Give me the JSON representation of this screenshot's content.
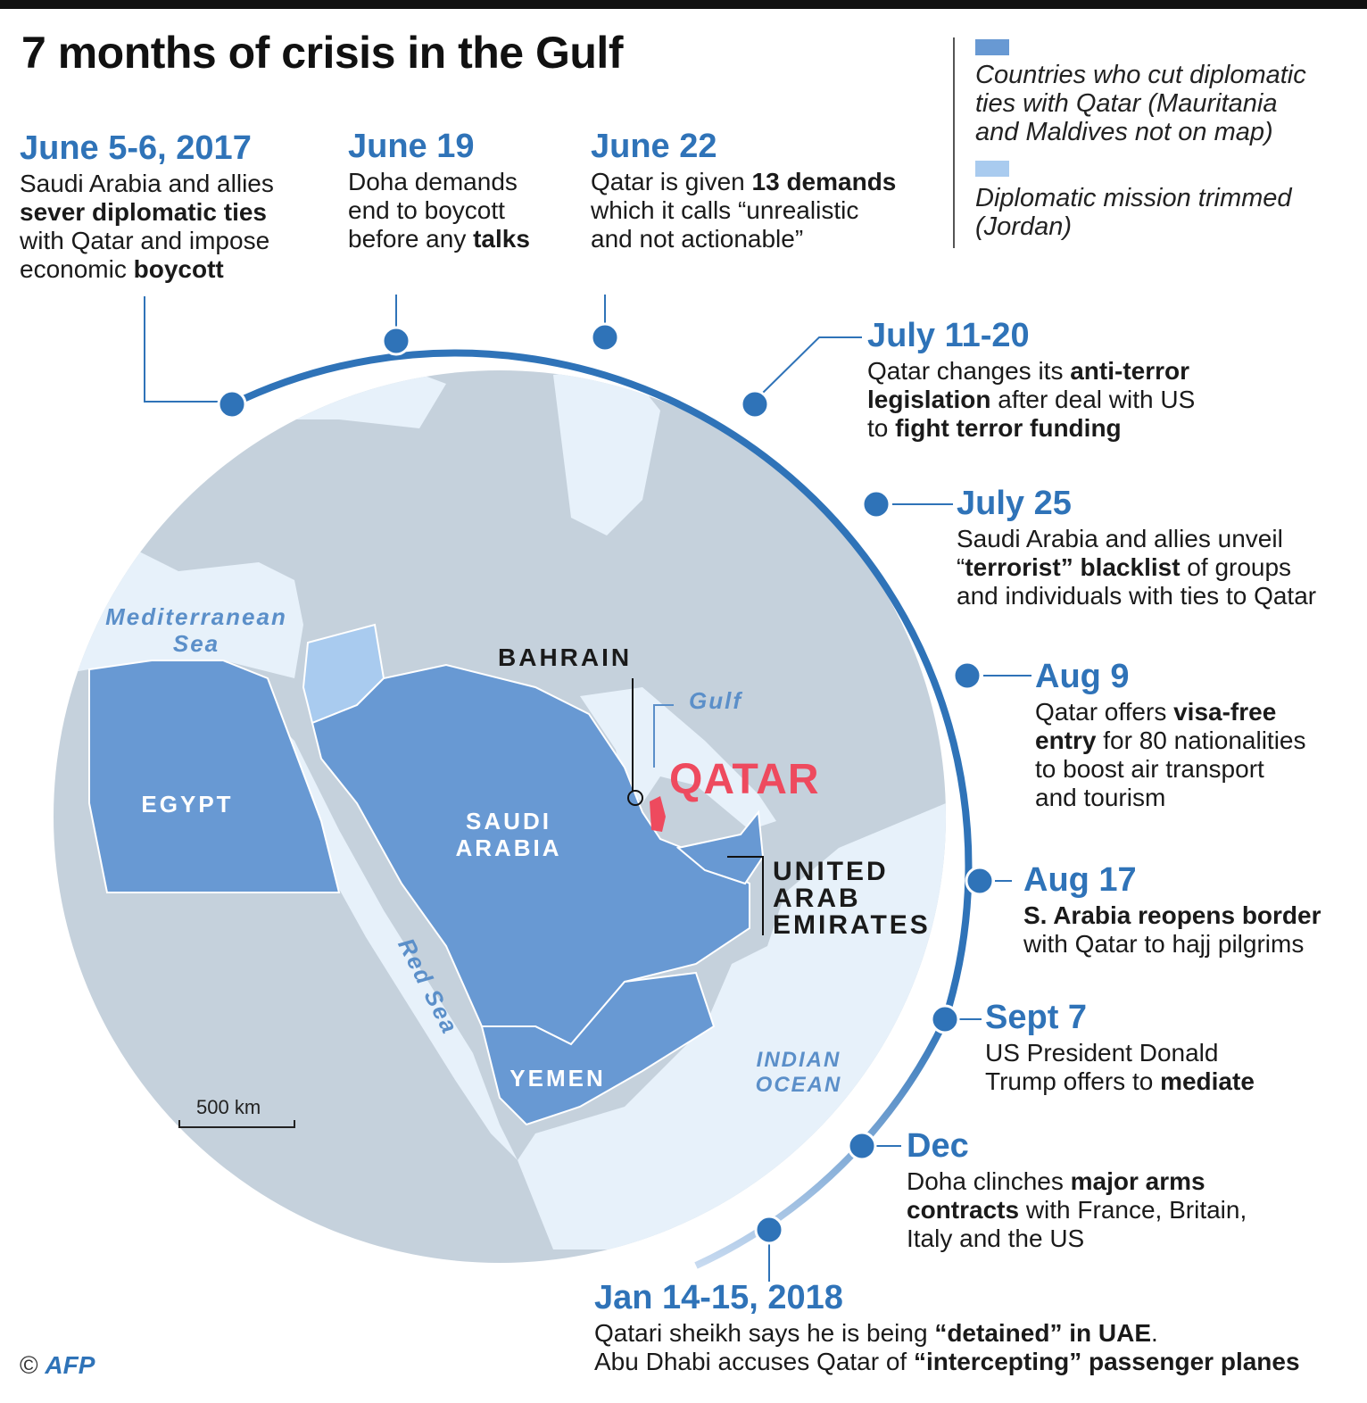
{
  "title": "7 months of crisis in the Gulf",
  "legend": {
    "items": [
      {
        "text": "Countries who cut diplomatic\nties with Qatar (Mauritania\nand Maldives not on map)",
        "color": "#6899d3"
      },
      {
        "text": "Diplomatic mission trimmed\n(Jordan)",
        "color": "#a9cbef"
      }
    ]
  },
  "colors": {
    "cut_ties": "#6899d3",
    "trimmed": "#a9cbef",
    "qatar": "#ee4a5e",
    "land": "#c5d1dc",
    "water": "#e7f1fa",
    "accent": "#2f73b8"
  },
  "events": [
    {
      "date": "June 5-6, 2017",
      "text": [
        "Saudi Arabia and allies",
        "<b>sever diplomatic ties</b>",
        "with Qatar and impose",
        "economic <b>boycott</b>"
      ]
    },
    {
      "date": "June 19",
      "text": [
        "Doha demands",
        "end to boycott",
        "before any <b>talks</b>"
      ]
    },
    {
      "date": "June 22",
      "text": [
        "Qatar is given <b>13 demands</b>",
        "which it calls “unrealistic",
        "and not actionable”"
      ]
    },
    {
      "date": "July 11-20",
      "text": [
        "Qatar changes its <b>anti-terror</b>",
        "<b>legislation</b> after deal with US",
        "to <b>fight terror funding</b>"
      ]
    },
    {
      "date": "July 25",
      "text": [
        "Saudi Arabia and allies unveil",
        "“<b>terrorist” blacklist</b>  of groups",
        "and individuals with ties to Qatar"
      ]
    },
    {
      "date": "Aug 9",
      "text": [
        "Qatar offers <b>visa-free</b>",
        "<b>entry</b> for 80 nationalities",
        "to boost air transport",
        "and tourism"
      ]
    },
    {
      "date": "Aug 17",
      "text": [
        "<b>S. Arabia reopens border</b>",
        "with Qatar to hajj pilgrims"
      ]
    },
    {
      "date": "Sept 7",
      "text": [
        "US President Donald",
        "Trump offers to <b>mediate</b>"
      ]
    },
    {
      "date": "Dec",
      "text": [
        "Doha clinches <b>major arms</b>",
        "<b>contracts</b> with France, Britain,",
        "Italy and the US"
      ]
    },
    {
      "date": "Jan 14-15, 2018",
      "text": [
        "Qatari sheikh says he is being <b>“detained” in UAE</b>.",
        "Abu Dhabi accuses Qatar of  <b>“intercepting” passenger planes</b>"
      ]
    }
  ],
  "map": {
    "countries": {
      "egypt": "EGYPT",
      "saudi": "SAUDI\nARABIA",
      "yemen": "YEMEN",
      "bahrain": "BAHRAIN",
      "uae": "UNITED\nARAB\nEMIRATES",
      "qatar": "QATAR"
    },
    "water": {
      "med": "Mediterranean\nSea",
      "red": "Red Sea",
      "gulf": "Gulf",
      "indian": "INDIAN\nOCEAN"
    },
    "scale": "500 km"
  },
  "credit": {
    "symbol": "©",
    "agency": "AFP"
  }
}
